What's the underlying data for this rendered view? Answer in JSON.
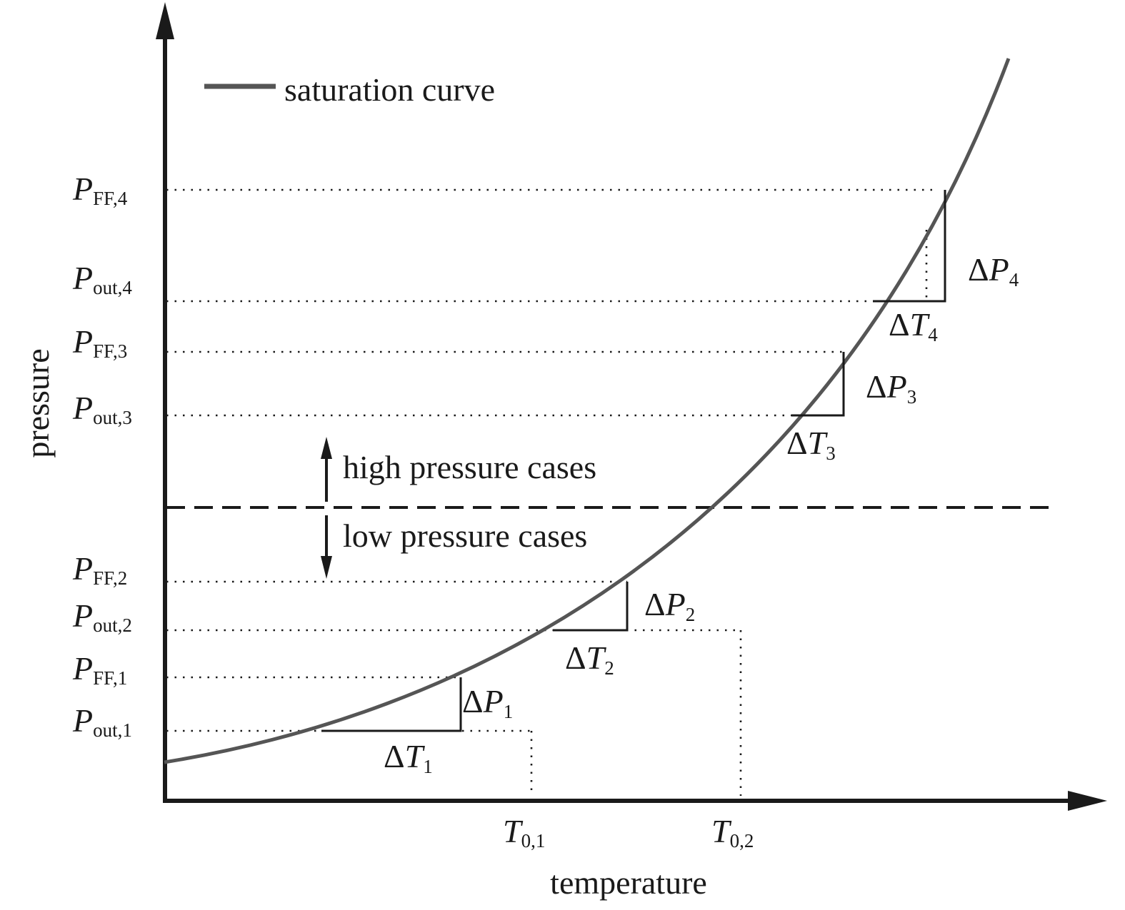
{
  "legend": {
    "label": "saturation curve"
  },
  "axes": {
    "x_label": "temperature",
    "y_label": "pressure"
  },
  "regions": {
    "high": "high pressure cases",
    "low": "low pressure cases"
  },
  "pressure_labels": {
    "pff4": {
      "main": "P",
      "sub": "FF,4"
    },
    "pout4": {
      "main": "P",
      "sub": "out,4"
    },
    "pff3": {
      "main": "P",
      "sub": "FF,3"
    },
    "pout3": {
      "main": "P",
      "sub": "out,3"
    },
    "pff2": {
      "main": "P",
      "sub": "FF,2"
    },
    "pout2": {
      "main": "P",
      "sub": "out,2"
    },
    "pff1": {
      "main": "P",
      "sub": "FF,1"
    },
    "pout1": {
      "main": "P",
      "sub": "out,1"
    }
  },
  "temperature_labels": {
    "t01": {
      "main": "T",
      "sub": "0,1"
    },
    "t02": {
      "main": "T",
      "sub": "0,2"
    }
  },
  "deltas": {
    "dp1": {
      "delta": "Δ",
      "main": "P",
      "sub": "1"
    },
    "dt1": {
      "delta": "Δ",
      "main": "T",
      "sub": "1"
    },
    "dp2": {
      "delta": "Δ",
      "main": "P",
      "sub": "2"
    },
    "dt2": {
      "delta": "Δ",
      "main": "T",
      "sub": "2"
    },
    "dp3": {
      "delta": "Δ",
      "main": "P",
      "sub": "3"
    },
    "dt3": {
      "delta": "Δ",
      "main": "T",
      "sub": "3"
    },
    "dp4": {
      "delta": "Δ",
      "main": "P",
      "sub": "4"
    },
    "dt4": {
      "delta": "Δ",
      "main": "T",
      "sub": "4"
    }
  },
  "colors": {
    "curve": "#555555",
    "ink": "#1a1a1a"
  }
}
